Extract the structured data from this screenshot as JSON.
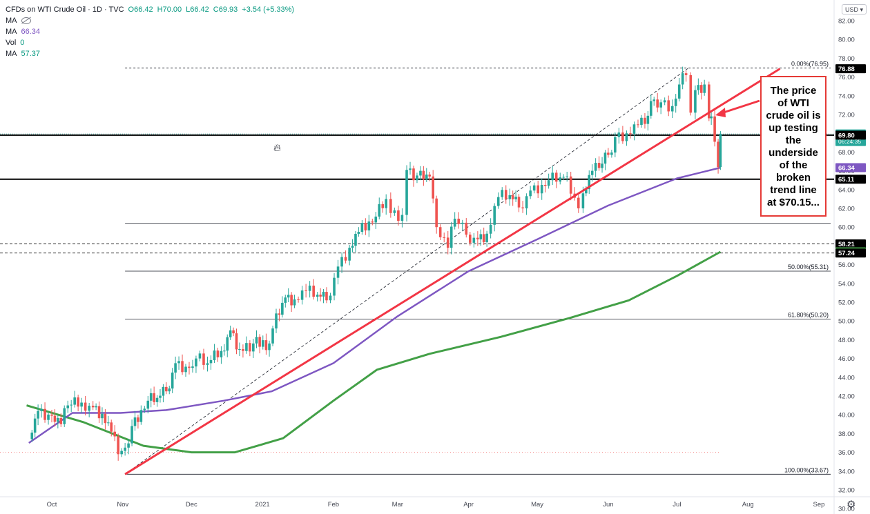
{
  "header": {
    "symbol": "CFDs on WTI Crude Oil · 1D · TVC",
    "open": "O66.42",
    "high": "H70.00",
    "low": "L66.42",
    "close": "C69.93",
    "change": "+3.54 (+5.33%)"
  },
  "indicators": {
    "ma1_label": "MA",
    "ma1_value": "66.34",
    "vol_label": "Vol",
    "vol_value": "0",
    "ma2_label": "MA",
    "ma2_value": "57.37"
  },
  "currency": "USD",
  "annotation": {
    "lines": [
      "The price",
      "of WTI",
      "crude oil is",
      "up testing",
      "the",
      "underside",
      "of the",
      "broken",
      "trend line",
      "at $70.15..."
    ]
  },
  "colors": {
    "up": "#26a69a",
    "down": "#ef5350",
    "trend": "#f23645",
    "ma100": "#7e57c2",
    "ma200": "#43a047",
    "level": "#000000"
  },
  "chart_data": {
    "type": "candlestick",
    "title": "CFDs on WTI Crude Oil · 1D · TVC",
    "ylim": [
      29,
      82
    ],
    "y_ticks": [
      30,
      32,
      34,
      36,
      38,
      40,
      42,
      44,
      46,
      48,
      50,
      52,
      54,
      56,
      58,
      60,
      62,
      64,
      66,
      68,
      70,
      72,
      74,
      76,
      78,
      80,
      82
    ],
    "x_ticks": [
      {
        "label": "Oct",
        "date": "2020-10-01"
      },
      {
        "label": "Nov",
        "date": "2020-11-01"
      },
      {
        "label": "Dec",
        "date": "2020-12-01"
      },
      {
        "label": "2021",
        "date": "2021-01-01"
      },
      {
        "label": "Feb",
        "date": "2021-02-01"
      },
      {
        "label": "Mar",
        "date": "2021-03-01"
      },
      {
        "label": "Apr",
        "date": "2021-04-01"
      },
      {
        "label": "May",
        "date": "2021-05-01"
      },
      {
        "label": "Jun",
        "date": "2021-06-01"
      },
      {
        "label": "Jul",
        "date": "2021-07-01"
      },
      {
        "label": "Aug",
        "date": "2021-08-01"
      },
      {
        "label": "Sep",
        "date": "2021-09-01"
      }
    ],
    "closes": [
      {
        "date": "2020-09-21",
        "v": 38.0
      },
      {
        "date": "2020-09-25",
        "v": 40.4
      },
      {
        "date": "2020-10-01",
        "v": 39.9
      },
      {
        "date": "2020-10-05",
        "v": 39.0
      },
      {
        "date": "2020-10-08",
        "v": 41.0
      },
      {
        "date": "2020-10-14",
        "v": 41.3
      },
      {
        "date": "2020-10-19",
        "v": 40.8
      },
      {
        "date": "2020-10-23",
        "v": 40.1
      },
      {
        "date": "2020-10-27",
        "v": 38.2
      },
      {
        "date": "2020-10-30",
        "v": 35.8
      },
      {
        "date": "2020-11-02",
        "v": 36.5
      },
      {
        "date": "2020-11-05",
        "v": 38.8
      },
      {
        "date": "2020-11-09",
        "v": 40.5
      },
      {
        "date": "2020-11-12",
        "v": 41.5
      },
      {
        "date": "2020-11-16",
        "v": 41.8
      },
      {
        "date": "2020-11-20",
        "v": 42.5
      },
      {
        "date": "2020-11-24",
        "v": 45.5
      },
      {
        "date": "2020-11-30",
        "v": 45.0
      },
      {
        "date": "2020-12-03",
        "v": 46.0
      },
      {
        "date": "2020-12-08",
        "v": 45.5
      },
      {
        "date": "2020-12-14",
        "v": 46.8
      },
      {
        "date": "2020-12-18",
        "v": 49.0
      },
      {
        "date": "2020-12-22",
        "v": 47.0
      },
      {
        "date": "2020-12-28",
        "v": 47.6
      },
      {
        "date": "2021-01-04",
        "v": 47.6
      },
      {
        "date": "2021-01-07",
        "v": 50.8
      },
      {
        "date": "2021-01-11",
        "v": 52.5
      },
      {
        "date": "2021-01-15",
        "v": 52.3
      },
      {
        "date": "2021-01-20",
        "v": 53.2
      },
      {
        "date": "2021-01-25",
        "v": 52.8
      },
      {
        "date": "2021-01-29",
        "v": 52.2
      },
      {
        "date": "2021-02-03",
        "v": 55.8
      },
      {
        "date": "2021-02-08",
        "v": 57.8
      },
      {
        "date": "2021-02-12",
        "v": 59.5
      },
      {
        "date": "2021-02-18",
        "v": 60.5
      },
      {
        "date": "2021-02-24",
        "v": 63.0
      },
      {
        "date": "2021-02-26",
        "v": 61.5
      },
      {
        "date": "2021-03-03",
        "v": 61.3
      },
      {
        "date": "2021-03-05",
        "v": 66.1
      },
      {
        "date": "2021-03-08",
        "v": 65.0
      },
      {
        "date": "2021-03-11",
        "v": 66.0
      },
      {
        "date": "2021-03-15",
        "v": 65.4
      },
      {
        "date": "2021-03-18",
        "v": 60.0
      },
      {
        "date": "2021-03-23",
        "v": 57.8
      },
      {
        "date": "2021-03-26",
        "v": 60.9
      },
      {
        "date": "2021-03-31",
        "v": 59.2
      },
      {
        "date": "2021-04-05",
        "v": 58.7
      },
      {
        "date": "2021-04-09",
        "v": 59.3
      },
      {
        "date": "2021-04-14",
        "v": 63.2
      },
      {
        "date": "2021-04-19",
        "v": 63.4
      },
      {
        "date": "2021-04-23",
        "v": 62.1
      },
      {
        "date": "2021-04-28",
        "v": 63.9
      },
      {
        "date": "2021-05-03",
        "v": 64.5
      },
      {
        "date": "2021-05-06",
        "v": 65.0
      },
      {
        "date": "2021-05-11",
        "v": 65.3
      },
      {
        "date": "2021-05-14",
        "v": 65.4
      },
      {
        "date": "2021-05-19",
        "v": 62.0
      },
      {
        "date": "2021-05-21",
        "v": 63.6
      },
      {
        "date": "2021-05-25",
        "v": 66.0
      },
      {
        "date": "2021-05-28",
        "v": 66.3
      },
      {
        "date": "2021-06-01",
        "v": 67.7
      },
      {
        "date": "2021-06-04",
        "v": 69.6
      },
      {
        "date": "2021-06-09",
        "v": 70.0
      },
      {
        "date": "2021-06-14",
        "v": 70.9
      },
      {
        "date": "2021-06-17",
        "v": 71.0
      },
      {
        "date": "2021-06-21",
        "v": 73.6
      },
      {
        "date": "2021-06-24",
        "v": 73.3
      },
      {
        "date": "2021-06-29",
        "v": 72.9
      },
      {
        "date": "2021-07-02",
        "v": 75.2
      },
      {
        "date": "2021-07-05",
        "v": 76.2
      },
      {
        "date": "2021-07-07",
        "v": 72.2
      },
      {
        "date": "2021-07-09",
        "v": 74.6
      },
      {
        "date": "2021-07-13",
        "v": 75.2
      },
      {
        "date": "2021-07-15",
        "v": 71.6
      },
      {
        "date": "2021-07-16",
        "v": 71.8
      },
      {
        "date": "2021-07-19",
        "v": 66.4
      },
      {
        "date": "2021-07-20",
        "v": 69.93
      }
    ],
    "ma100": [
      {
        "date": "2020-09-21",
        "v": 37.0
      },
      {
        "date": "2020-10-10",
        "v": 40.2
      },
      {
        "date": "2020-10-31",
        "v": 40.2
      },
      {
        "date": "2020-11-20",
        "v": 40.5
      },
      {
        "date": "2020-12-15",
        "v": 41.5
      },
      {
        "date": "2021-01-05",
        "v": 42.5
      },
      {
        "date": "2021-02-01",
        "v": 45.5
      },
      {
        "date": "2021-03-01",
        "v": 50.5
      },
      {
        "date": "2021-04-01",
        "v": 55.3
      },
      {
        "date": "2021-05-01",
        "v": 58.7
      },
      {
        "date": "2021-06-01",
        "v": 62.3
      },
      {
        "date": "2021-07-01",
        "v": 65.2
      },
      {
        "date": "2021-07-20",
        "v": 66.34
      }
    ],
    "ma200": [
      {
        "date": "2020-09-20",
        "v": 41.0
      },
      {
        "date": "2020-10-15",
        "v": 39.2
      },
      {
        "date": "2020-11-10",
        "v": 36.7
      },
      {
        "date": "2020-12-01",
        "v": 36.0
      },
      {
        "date": "2020-12-20",
        "v": 36.0
      },
      {
        "date": "2021-01-10",
        "v": 37.5
      },
      {
        "date": "2021-02-01",
        "v": 41.5
      },
      {
        "date": "2021-02-20",
        "v": 44.8
      },
      {
        "date": "2021-03-15",
        "v": 46.5
      },
      {
        "date": "2021-04-15",
        "v": 48.3
      },
      {
        "date": "2021-05-15",
        "v": 50.3
      },
      {
        "date": "2021-06-10",
        "v": 52.2
      },
      {
        "date": "2021-07-01",
        "v": 54.8
      },
      {
        "date": "2021-07-20",
        "v": 57.37
      }
    ],
    "trendline": {
      "from": {
        "date": "2020-11-02",
        "v": 33.67
      },
      "to": {
        "date": "2021-08-15",
        "v": 76.88
      },
      "note": "broken trend line at $70.15"
    },
    "fib_diagonal": {
      "from": {
        "date": "2020-11-02",
        "v": 33.67
      },
      "to": {
        "date": "2021-07-06",
        "v": 76.95
      }
    },
    "fib_levels": [
      {
        "label": "0.00%(76.95)",
        "v": 76.95
      },
      {
        "label": "50.00%(55.31)",
        "v": 55.31
      },
      {
        "label": "61.80%(50.20)",
        "v": 50.2
      },
      {
        "label": "100.00%(33.67)",
        "v": 33.67
      }
    ],
    "unlabeled_fib_lines": [
      60.4
    ],
    "horizontal_lines": [
      {
        "v": 69.8,
        "style": "solid"
      },
      {
        "v": 65.11,
        "style": "solid"
      },
      {
        "v": 58.21,
        "style": "dashed"
      },
      {
        "v": 57.24,
        "style": "dashed"
      }
    ],
    "price_labels": [
      {
        "text": "76.88",
        "v": 76.88,
        "bg": "#000000"
      },
      {
        "text": "69.93",
        "sub": "06:24:35",
        "v": 69.93,
        "bg": "#26a69a"
      },
      {
        "text": "69.80",
        "v": 69.8,
        "bg": "#000000"
      },
      {
        "text": "66.34",
        "v": 66.34,
        "bg": "#7e57c2"
      },
      {
        "text": "65.11",
        "v": 65.11,
        "bg": "#000000"
      },
      {
        "text": "58.21",
        "v": 58.21,
        "bg": "#000000"
      },
      {
        "text": "57.37",
        "v": 57.37,
        "bg": "#43a047"
      },
      {
        "text": "57.24",
        "v": 57.24,
        "bg": "#000000"
      }
    ]
  }
}
